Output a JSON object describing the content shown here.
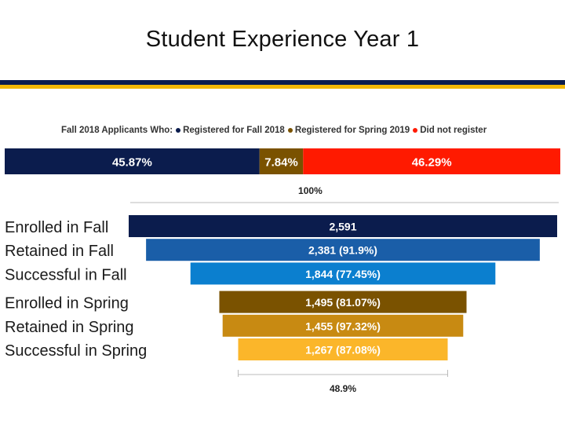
{
  "slide": {
    "title": "Student Experience Year 1"
  },
  "legend": {
    "prefix": "Fall 2018 Applicants Who:",
    "items": [
      {
        "label": "Registered for Fall 2018",
        "color": "#0b1c4d"
      },
      {
        "label": "Registered for Spring 2019",
        "color": "#7a5200"
      },
      {
        "label": "Did not register",
        "color": "#ff1a00"
      }
    ]
  },
  "chart_data": [
    {
      "type": "bar",
      "orientation": "horizontal-stacked",
      "segments": [
        {
          "name": "Registered for Fall 2018",
          "value": 45.87,
          "label": "45.87%",
          "color": "#0b1c4d"
        },
        {
          "name": "Registered for Spring 2019",
          "value": 7.84,
          "label": "7.84%",
          "color": "#7a5200"
        },
        {
          "name": "Did not register",
          "value": 46.29,
          "label": "46.29%",
          "color": "#ff1a00"
        }
      ],
      "total_label": "100%"
    },
    {
      "type": "bar",
      "orientation": "funnel",
      "categories": [
        "Enrolled in Fall",
        "Retained in Fall",
        "Successful in Fall",
        "Enrolled in Spring",
        "Retained in Spring",
        "Successful in Spring"
      ],
      "values": [
        2591,
        2381,
        1844,
        1495,
        1455,
        1267
      ],
      "value_labels": [
        "2,591",
        "2,381 (91.9%)",
        "1,844 (77.45%)",
        "1,495 (81.07%)",
        "1,455 (97.32%)",
        "1,267 (87.08%)"
      ],
      "colors": [
        "#0b1c4d",
        "#1a5ea8",
        "#0b7fcf",
        "#7a5200",
        "#c88a12",
        "#fbb62a"
      ],
      "overall_label": "48.9%"
    }
  ]
}
